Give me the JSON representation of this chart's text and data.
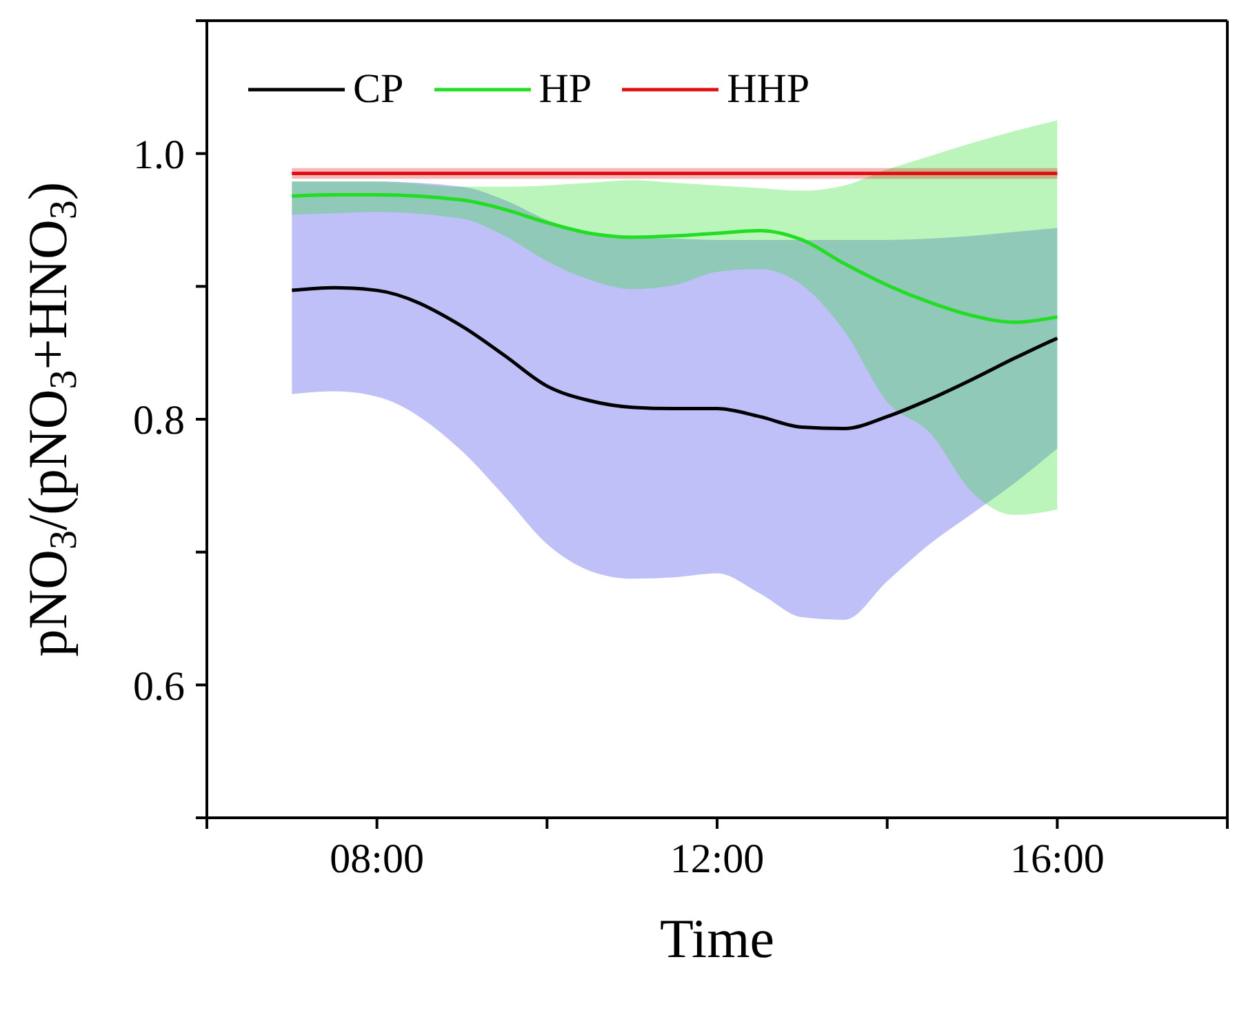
{
  "chart_data": {
    "type": "line",
    "xlabel": "Time",
    "ylabel": "pNO$_{3}$/(pNO$_{3}$+HNO$_{3}$)",
    "x": [
      7,
      7.5,
      8,
      9,
      9.5,
      10,
      10.5,
      11,
      11.5,
      12,
      12.5,
      13,
      13.5,
      14,
      14.5,
      15,
      15.5,
      16
    ],
    "series": [
      {
        "name": "CP",
        "color": "#000000",
        "values": [
          0.897,
          0.899,
          0.897,
          0.87,
          0.848,
          0.825,
          0.814,
          0.809,
          0.808,
          0.808,
          0.802,
          0.794,
          0.793,
          0.802,
          0.815,
          0.83,
          0.846,
          0.861
        ],
        "lower": [
          0.819,
          0.821,
          0.817,
          0.776,
          0.742,
          0.706,
          0.686,
          0.68,
          0.681,
          0.684,
          0.669,
          0.651,
          0.649,
          0.678,
          0.706,
          0.729,
          0.752,
          0.778
        ],
        "upper": [
          0.979,
          0.979,
          0.979,
          0.975,
          0.965,
          0.95,
          0.94,
          0.937,
          0.936,
          0.935,
          0.935,
          0.935,
          0.935,
          0.935,
          0.936,
          0.938,
          0.941,
          0.944
        ]
      },
      {
        "name": "HP",
        "color": "#22dd22",
        "values": [
          0.968,
          0.969,
          0.969,
          0.965,
          0.958,
          0.948,
          0.94,
          0.937,
          0.938,
          0.94,
          0.942,
          0.935,
          0.917,
          0.901,
          0.888,
          0.878,
          0.873,
          0.877
        ],
        "lower": [
          0.954,
          0.955,
          0.956,
          0.951,
          0.938,
          0.919,
          0.905,
          0.898,
          0.901,
          0.911,
          0.913,
          0.901,
          0.866,
          0.813,
          0.79,
          0.745,
          0.728,
          0.732
        ],
        "upper": [
          0.979,
          0.979,
          0.979,
          0.975,
          0.975,
          0.976,
          0.978,
          0.98,
          0.978,
          0.976,
          0.974,
          0.972,
          0.976,
          0.988,
          0.998,
          1.008,
          1.017,
          1.025
        ]
      },
      {
        "name": "HHP",
        "color": "#dd1111",
        "values": [
          0.985,
          0.985,
          0.985,
          0.985,
          0.985,
          0.985,
          0.985,
          0.985,
          0.985,
          0.985,
          0.985,
          0.985,
          0.985,
          0.985,
          0.985,
          0.985,
          0.985,
          0.985
        ],
        "lower": [
          0.981,
          0.981,
          0.981,
          0.981,
          0.981,
          0.981,
          0.981,
          0.981,
          0.981,
          0.981,
          0.981,
          0.981,
          0.981,
          0.981,
          0.981,
          0.981,
          0.981,
          0.981
        ],
        "upper": [
          0.989,
          0.989,
          0.989,
          0.989,
          0.989,
          0.989,
          0.989,
          0.989,
          0.989,
          0.989,
          0.989,
          0.989,
          0.989,
          0.989,
          0.989,
          0.989,
          0.989,
          0.989
        ]
      }
    ],
    "xlim": [
      6,
      18
    ],
    "xticks": [
      {
        "value": 6,
        "label": null
      },
      {
        "value": 8,
        "label": "08:00"
      },
      {
        "value": 10,
        "label": null
      },
      {
        "value": 12,
        "label": "12:00"
      },
      {
        "value": 14,
        "label": null
      },
      {
        "value": 16,
        "label": "16:00"
      },
      {
        "value": 18,
        "label": null
      }
    ],
    "ylim": [
      0.5,
      1.1
    ],
    "yticks": [
      {
        "value": 0.5,
        "label": null
      },
      0.6,
      {
        "value": 0.7,
        "label": null
      },
      0.8,
      {
        "value": 0.9,
        "label": null
      },
      {
        "value": 1,
        "label": "1.0"
      },
      {
        "value": 1.1,
        "label": null
      }
    ],
    "legend": "top left"
  }
}
